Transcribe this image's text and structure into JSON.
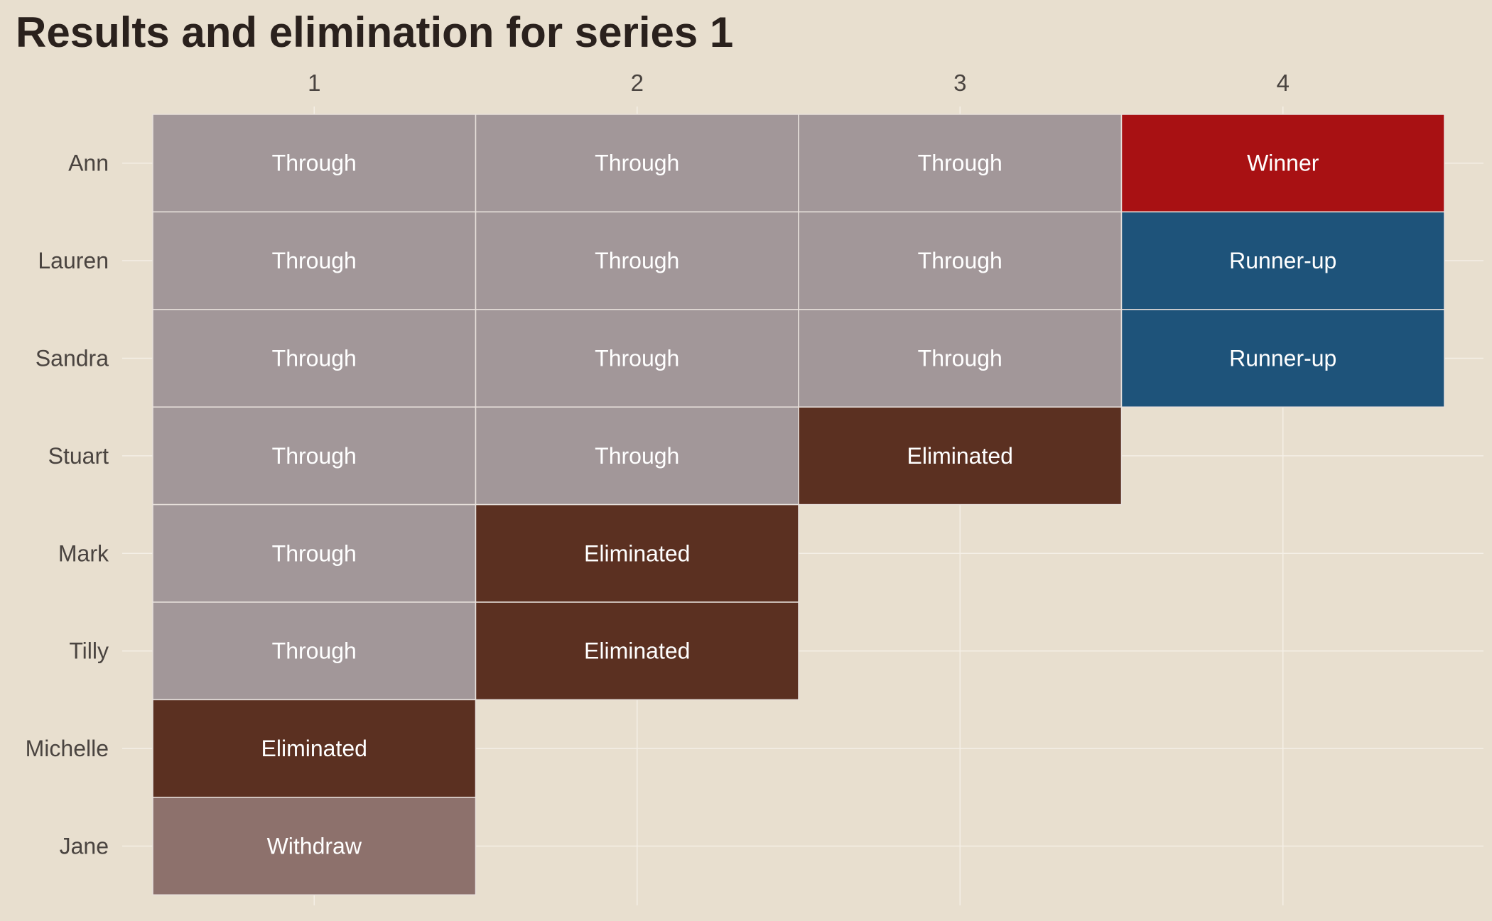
{
  "chart_data": {
    "type": "heatmap",
    "title": "Results and elimination for series 1",
    "columns": [
      "1",
      "2",
      "3",
      "4"
    ],
    "rows": [
      "Ann",
      "Lauren",
      "Sandra",
      "Stuart",
      "Mark",
      "Tilly",
      "Michelle",
      "Jane"
    ],
    "cells": [
      [
        "Through",
        "Through",
        "Through",
        "Winner"
      ],
      [
        "Through",
        "Through",
        "Through",
        "Runner-up"
      ],
      [
        "Through",
        "Through",
        "Through",
        "Runner-up"
      ],
      [
        "Through",
        "Through",
        "Eliminated",
        null
      ],
      [
        "Through",
        "Eliminated",
        null,
        null
      ],
      [
        "Through",
        "Eliminated",
        null,
        null
      ],
      [
        "Eliminated",
        null,
        null,
        null
      ],
      [
        "Withdraw",
        null,
        null,
        null
      ]
    ],
    "status_colors": {
      "Through": "#a29799",
      "Winner": "#a81113",
      "Runner-up": "#1e537a",
      "Eliminated": "#5b3021",
      "Withdraw": "#8d716c"
    },
    "grid": true,
    "legend": "none"
  },
  "colors": {
    "background": "#e8dfcf",
    "gridline": "#f4efe6",
    "cell_border": "#e8e1dc",
    "title": "#2a211d",
    "axis_text": "#4a4440"
  }
}
